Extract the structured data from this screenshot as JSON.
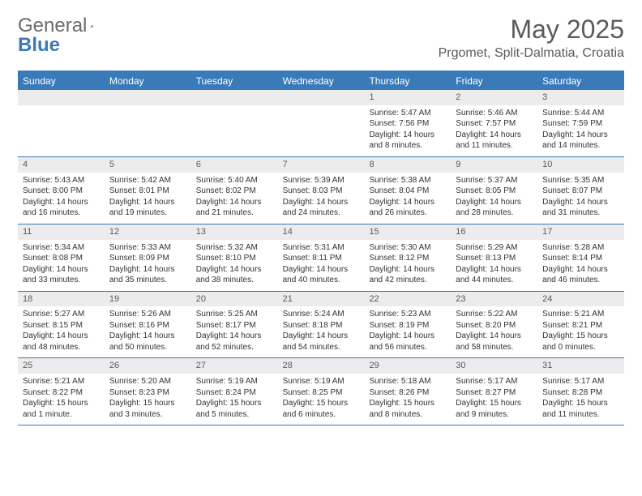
{
  "brand": {
    "name1": "General",
    "name2": "Blue"
  },
  "title": "May 2025",
  "location": "Prgomet, Split-Dalmatia, Croatia",
  "colors": {
    "accent": "#3a7ab8",
    "header_text": "#ffffff",
    "daynum_bg": "#ececec",
    "text": "#333333",
    "muted": "#5a5a5a",
    "background": "#ffffff"
  },
  "dow": [
    "Sunday",
    "Monday",
    "Tuesday",
    "Wednesday",
    "Thursday",
    "Friday",
    "Saturday"
  ],
  "weeks": [
    [
      null,
      null,
      null,
      null,
      {
        "n": "1",
        "sr": "5:47 AM",
        "ss": "7:56 PM",
        "dl": "14 hours and 8 minutes."
      },
      {
        "n": "2",
        "sr": "5:46 AM",
        "ss": "7:57 PM",
        "dl": "14 hours and 11 minutes."
      },
      {
        "n": "3",
        "sr": "5:44 AM",
        "ss": "7:59 PM",
        "dl": "14 hours and 14 minutes."
      }
    ],
    [
      {
        "n": "4",
        "sr": "5:43 AM",
        "ss": "8:00 PM",
        "dl": "14 hours and 16 minutes."
      },
      {
        "n": "5",
        "sr": "5:42 AM",
        "ss": "8:01 PM",
        "dl": "14 hours and 19 minutes."
      },
      {
        "n": "6",
        "sr": "5:40 AM",
        "ss": "8:02 PM",
        "dl": "14 hours and 21 minutes."
      },
      {
        "n": "7",
        "sr": "5:39 AM",
        "ss": "8:03 PM",
        "dl": "14 hours and 24 minutes."
      },
      {
        "n": "8",
        "sr": "5:38 AM",
        "ss": "8:04 PM",
        "dl": "14 hours and 26 minutes."
      },
      {
        "n": "9",
        "sr": "5:37 AM",
        "ss": "8:05 PM",
        "dl": "14 hours and 28 minutes."
      },
      {
        "n": "10",
        "sr": "5:35 AM",
        "ss": "8:07 PM",
        "dl": "14 hours and 31 minutes."
      }
    ],
    [
      {
        "n": "11",
        "sr": "5:34 AM",
        "ss": "8:08 PM",
        "dl": "14 hours and 33 minutes."
      },
      {
        "n": "12",
        "sr": "5:33 AM",
        "ss": "8:09 PM",
        "dl": "14 hours and 35 minutes."
      },
      {
        "n": "13",
        "sr": "5:32 AM",
        "ss": "8:10 PM",
        "dl": "14 hours and 38 minutes."
      },
      {
        "n": "14",
        "sr": "5:31 AM",
        "ss": "8:11 PM",
        "dl": "14 hours and 40 minutes."
      },
      {
        "n": "15",
        "sr": "5:30 AM",
        "ss": "8:12 PM",
        "dl": "14 hours and 42 minutes."
      },
      {
        "n": "16",
        "sr": "5:29 AM",
        "ss": "8:13 PM",
        "dl": "14 hours and 44 minutes."
      },
      {
        "n": "17",
        "sr": "5:28 AM",
        "ss": "8:14 PM",
        "dl": "14 hours and 46 minutes."
      }
    ],
    [
      {
        "n": "18",
        "sr": "5:27 AM",
        "ss": "8:15 PM",
        "dl": "14 hours and 48 minutes."
      },
      {
        "n": "19",
        "sr": "5:26 AM",
        "ss": "8:16 PM",
        "dl": "14 hours and 50 minutes."
      },
      {
        "n": "20",
        "sr": "5:25 AM",
        "ss": "8:17 PM",
        "dl": "14 hours and 52 minutes."
      },
      {
        "n": "21",
        "sr": "5:24 AM",
        "ss": "8:18 PM",
        "dl": "14 hours and 54 minutes."
      },
      {
        "n": "22",
        "sr": "5:23 AM",
        "ss": "8:19 PM",
        "dl": "14 hours and 56 minutes."
      },
      {
        "n": "23",
        "sr": "5:22 AM",
        "ss": "8:20 PM",
        "dl": "14 hours and 58 minutes."
      },
      {
        "n": "24",
        "sr": "5:21 AM",
        "ss": "8:21 PM",
        "dl": "15 hours and 0 minutes."
      }
    ],
    [
      {
        "n": "25",
        "sr": "5:21 AM",
        "ss": "8:22 PM",
        "dl": "15 hours and 1 minute."
      },
      {
        "n": "26",
        "sr": "5:20 AM",
        "ss": "8:23 PM",
        "dl": "15 hours and 3 minutes."
      },
      {
        "n": "27",
        "sr": "5:19 AM",
        "ss": "8:24 PM",
        "dl": "15 hours and 5 minutes."
      },
      {
        "n": "28",
        "sr": "5:19 AM",
        "ss": "8:25 PM",
        "dl": "15 hours and 6 minutes."
      },
      {
        "n": "29",
        "sr": "5:18 AM",
        "ss": "8:26 PM",
        "dl": "15 hours and 8 minutes."
      },
      {
        "n": "30",
        "sr": "5:17 AM",
        "ss": "8:27 PM",
        "dl": "15 hours and 9 minutes."
      },
      {
        "n": "31",
        "sr": "5:17 AM",
        "ss": "8:28 PM",
        "dl": "15 hours and 11 minutes."
      }
    ]
  ],
  "labels": {
    "sunrise": "Sunrise:",
    "sunset": "Sunset:",
    "daylight": "Daylight:"
  }
}
